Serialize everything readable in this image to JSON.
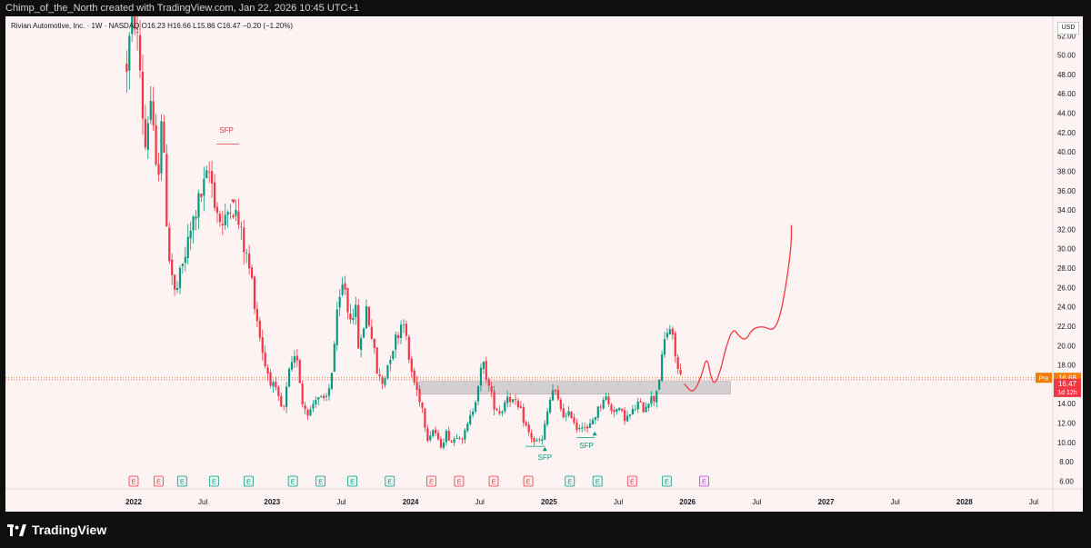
{
  "header": {
    "attribution": "Chimp_of_the_North created with TradingView.com, Jan 22, 2026 10:45 UTC+1"
  },
  "legend": {
    "symbol": "Rivian Automotive, Inc. · 1W · NASDAQ",
    "open": "O16.23",
    "high": "H16.66",
    "low": "L15.86",
    "close": "C16.47",
    "change": "−0.20 (−1.20%)"
  },
  "currency": "USD",
  "footer": {
    "logo_text": "TradingView"
  },
  "colors": {
    "up": "#089981",
    "down": "#f23645",
    "background": "#fdf3f2",
    "projection": "#f23645",
    "zone": "#b9b9bc",
    "pre": "#f57c00"
  },
  "chart_data": {
    "type": "candlestick",
    "title": "Rivian Automotive, Inc. · 1W · NASDAQ",
    "ylim": [
      5.2,
      54.0
    ],
    "y_ticks": [
      6,
      8,
      10,
      12,
      14,
      16,
      18,
      20,
      22,
      24,
      26,
      28,
      30,
      32,
      34,
      36,
      38,
      40,
      42,
      44,
      46,
      48,
      50,
      52
    ],
    "x_ticks": [
      {
        "label": "2022",
        "t": 2022.0,
        "bold": true
      },
      {
        "label": "Jul",
        "t": 2022.5
      },
      {
        "label": "2023",
        "t": 2023.0,
        "bold": true
      },
      {
        "label": "Jul",
        "t": 2023.5
      },
      {
        "label": "2024",
        "t": 2024.0,
        "bold": true
      },
      {
        "label": "Jul",
        "t": 2024.5
      },
      {
        "label": "2025",
        "t": 2025.0,
        "bold": true
      },
      {
        "label": "Jul",
        "t": 2025.5
      },
      {
        "label": "2026",
        "t": 2026.0,
        "bold": true
      },
      {
        "label": "Jul",
        "t": 2026.5
      },
      {
        "label": "2027",
        "t": 2027.0,
        "bold": true
      },
      {
        "label": "Jul",
        "t": 2027.5
      },
      {
        "label": "2028",
        "t": 2028.0,
        "bold": true
      },
      {
        "label": "Jul",
        "t": 2028.5
      }
    ],
    "price_path": [
      [
        2021.95,
        49
      ],
      [
        2022.0,
        55
      ],
      [
        2022.05,
        48
      ],
      [
        2022.08,
        40
      ],
      [
        2022.12,
        46
      ],
      [
        2022.17,
        36
      ],
      [
        2022.2,
        44
      ],
      [
        2022.25,
        30
      ],
      [
        2022.3,
        25
      ],
      [
        2022.35,
        28
      ],
      [
        2022.4,
        31
      ],
      [
        2022.45,
        34
      ],
      [
        2022.5,
        36
      ],
      [
        2022.55,
        38
      ],
      [
        2022.6,
        34
      ],
      [
        2022.65,
        32
      ],
      [
        2022.7,
        35
      ],
      [
        2022.75,
        33
      ],
      [
        2022.8,
        30
      ],
      [
        2022.85,
        27
      ],
      [
        2022.9,
        22
      ],
      [
        2022.95,
        18
      ],
      [
        2023.0,
        16
      ],
      [
        2023.03,
        15
      ],
      [
        2023.08,
        13
      ],
      [
        2023.12,
        17
      ],
      [
        2023.18,
        19
      ],
      [
        2023.22,
        14
      ],
      [
        2023.27,
        13
      ],
      [
        2023.32,
        15
      ],
      [
        2023.38,
        14
      ],
      [
        2023.42,
        16
      ],
      [
        2023.47,
        23
      ],
      [
        2023.52,
        27
      ],
      [
        2023.55,
        23
      ],
      [
        2023.6,
        24
      ],
      [
        2023.63,
        19
      ],
      [
        2023.68,
        24
      ],
      [
        2023.72,
        21
      ],
      [
        2023.76,
        17
      ],
      [
        2023.8,
        16
      ],
      [
        2023.85,
        19
      ],
      [
        2023.9,
        21
      ],
      [
        2023.95,
        23
      ],
      [
        2023.98,
        19
      ],
      [
        2024.03,
        16
      ],
      [
        2024.08,
        14
      ],
      [
        2024.12,
        10.5
      ],
      [
        2024.17,
        11.5
      ],
      [
        2024.21,
        9.5
      ],
      [
        2024.26,
        11
      ],
      [
        2024.3,
        10
      ],
      [
        2024.34,
        11
      ],
      [
        2024.38,
        10.5
      ],
      [
        2024.42,
        12
      ],
      [
        2024.46,
        14
      ],
      [
        2024.5,
        17
      ],
      [
        2024.53,
        18
      ],
      [
        2024.56,
        16
      ],
      [
        2024.6,
        14
      ],
      [
        2024.65,
        13
      ],
      [
        2024.7,
        15
      ],
      [
        2024.75,
        14
      ],
      [
        2024.8,
        13
      ],
      [
        2024.85,
        11
      ],
      [
        2024.9,
        10
      ],
      [
        2024.95,
        10.2
      ],
      [
        2025.0,
        14
      ],
      [
        2025.03,
        15.5
      ],
      [
        2025.07,
        14
      ],
      [
        2025.12,
        12.5
      ],
      [
        2025.16,
        13
      ],
      [
        2025.2,
        11.5
      ],
      [
        2025.24,
        12
      ],
      [
        2025.28,
        11.2
      ],
      [
        2025.32,
        12.5
      ],
      [
        2025.36,
        13.5
      ],
      [
        2025.4,
        15
      ],
      [
        2025.44,
        13.5
      ],
      [
        2025.48,
        13.5
      ],
      [
        2025.52,
        13
      ],
      [
        2025.56,
        12.5
      ],
      [
        2025.6,
        13
      ],
      [
        2025.64,
        14
      ],
      [
        2025.68,
        13.5
      ],
      [
        2025.72,
        14.5
      ],
      [
        2025.76,
        14.5
      ],
      [
        2025.8,
        17
      ],
      [
        2025.84,
        21
      ],
      [
        2025.87,
        22
      ],
      [
        2025.9,
        20
      ],
      [
        2025.93,
        17.5
      ],
      [
        2025.96,
        16.5
      ]
    ],
    "last_price": 16.47,
    "pre_price": 16.68,
    "price_labels": {
      "pre_tag": "Pre",
      "pre_value": "16.68",
      "last_value": "16.47",
      "countdown": "1d 12h"
    },
    "annotations": [
      {
        "label": "SFP",
        "t": 2022.67,
        "price": 42.0,
        "color": "#f23645"
      },
      {
        "label": "SFP",
        "t": 2024.97,
        "price": 8.2,
        "color": "#089981"
      },
      {
        "label": "SFP",
        "t": 2025.27,
        "price": 9.4,
        "color": "#089981"
      }
    ],
    "sfp_lines": [
      {
        "t0": 2022.6,
        "t1": 2022.76,
        "price": 40.8,
        "color": "#f23645"
      },
      {
        "t0": 2024.83,
        "t1": 2024.97,
        "price": 9.6,
        "color": "#089981"
      },
      {
        "t0": 2025.2,
        "t1": 2025.33,
        "price": 10.5,
        "color": "#089981"
      }
    ],
    "marker_up": [
      {
        "t": 2024.97,
        "price": 9.3
      },
      {
        "t": 2025.33,
        "price": 10.9
      }
    ],
    "marker_down": [
      {
        "t": 2022.72,
        "price": 34.9
      }
    ],
    "zone": {
      "t0": 2024.06,
      "t1": 2026.31,
      "low": 15.0,
      "high": 16.3
    },
    "projection": [
      [
        2025.98,
        16.0
      ],
      [
        2026.04,
        15.0
      ],
      [
        2026.1,
        16.8
      ],
      [
        2026.14,
        19.0
      ],
      [
        2026.17,
        16.6
      ],
      [
        2026.2,
        16.0
      ],
      [
        2026.24,
        17.5
      ],
      [
        2026.28,
        20.0
      ],
      [
        2026.33,
        21.8
      ],
      [
        2026.37,
        21.0
      ],
      [
        2026.42,
        20.5
      ],
      [
        2026.47,
        21.8
      ],
      [
        2026.55,
        22.0
      ],
      [
        2026.62,
        21.5
      ],
      [
        2026.67,
        23.0
      ],
      [
        2026.72,
        27.0
      ],
      [
        2026.75,
        30.5
      ],
      [
        2026.75,
        32.4
      ]
    ],
    "earnings": [
      {
        "t": 2022.0,
        "type": "miss"
      },
      {
        "t": 2022.18,
        "type": "miss"
      },
      {
        "t": 2022.35,
        "type": "beat"
      },
      {
        "t": 2022.58,
        "type": "beat"
      },
      {
        "t": 2022.83,
        "type": "beat"
      },
      {
        "t": 2023.15,
        "type": "beat"
      },
      {
        "t": 2023.35,
        "type": "beat"
      },
      {
        "t": 2023.58,
        "type": "beat"
      },
      {
        "t": 2023.85,
        "type": "beat"
      },
      {
        "t": 2024.15,
        "type": "miss"
      },
      {
        "t": 2024.35,
        "type": "miss"
      },
      {
        "t": 2024.6,
        "type": "miss"
      },
      {
        "t": 2024.85,
        "type": "miss"
      },
      {
        "t": 2025.15,
        "type": "beat"
      },
      {
        "t": 2025.35,
        "type": "beat"
      },
      {
        "t": 2025.6,
        "type": "miss"
      },
      {
        "t": 2025.85,
        "type": "beat"
      },
      {
        "t": 2026.12,
        "type": "upcoming"
      }
    ],
    "earnings_label": "E"
  }
}
